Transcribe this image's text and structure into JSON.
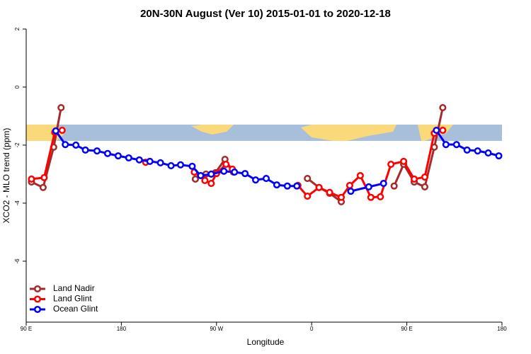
{
  "chart_data": {
    "type": "line",
    "title": "20N-30N August (Ver 10)   2015-01-01 to 2020-12-18",
    "xlabel": "Longitude",
    "ylabel": "XCO2 - MLO trend (ppm)",
    "xlim": [
      90,
      540
    ],
    "xticks": [
      {
        "value": 90,
        "label": "90 E"
      },
      180,
      {
        "value": 270,
        "label": "90 W"
      },
      {
        "value": 360,
        "label": "0"
      },
      {
        "value": 450,
        "label": "90 E"
      },
      {
        "value": 540,
        "label": "180"
      }
    ],
    "ylim": [
      -8.1,
      2
    ],
    "yticks": [
      2,
      0,
      -2,
      -4,
      -6
    ],
    "legend": "bottom-left",
    "series": [
      {
        "name": "Land Nadir",
        "color": "#a52a2a",
        "x": [
          95,
          106,
          116,
          123,
          null,
          250,
          260,
          269,
          278,
          286,
          null,
          356,
          367,
          377,
          388,
          null,
          438,
          447,
          457,
          467,
          476,
          484
        ],
        "values": [
          -3.27,
          -3.46,
          -2.07,
          -0.71,
          null,
          -3.17,
          -3.0,
          -2.95,
          -2.49,
          -2.93,
          null,
          -3.15,
          -3.46,
          -3.66,
          -3.95,
          null,
          -3.41,
          -2.66,
          -3.27,
          -3.44,
          -2.07,
          -0.71
        ]
      },
      {
        "name": "Land Glint",
        "color": "#ff0000",
        "x": [
          95,
          107,
          117,
          124,
          null,
          203,
          null,
          249,
          259,
          265,
          270,
          279,
          285,
          null,
          347,
          356,
          367,
          377,
          388,
          396,
          406,
          416,
          425,
          435,
          447,
          457,
          467,
          476,
          484
        ],
        "values": [
          -3.17,
          -3.12,
          -1.56,
          -1.49,
          null,
          -2.59,
          null,
          -2.93,
          -3.22,
          -3.32,
          -2.98,
          -2.66,
          -2.83,
          null,
          -3.39,
          -3.76,
          -3.46,
          -3.63,
          -3.8,
          -3.39,
          -3.05,
          -3.8,
          -3.78,
          -2.66,
          -2.56,
          -3.17,
          -3.1,
          -1.59,
          -1.49
        ]
      },
      {
        "name": "Ocean Glint",
        "color": "#0000ff",
        "x": [
          118,
          127,
          137,
          146,
          157,
          167,
          177,
          187,
          197,
          207,
          217,
          227,
          236,
          247,
          255,
          265,
          277,
          287,
          297,
          307,
          317,
          327,
          337,
          346,
          null,
          397,
          414,
          428,
          null,
          478,
          487,
          497,
          507,
          517,
          527,
          537
        ],
        "values": [
          -1.51,
          -1.98,
          -2.0,
          -2.17,
          -2.2,
          -2.29,
          -2.37,
          -2.44,
          -2.51,
          -2.56,
          -2.61,
          -2.71,
          -2.68,
          -2.73,
          -3.05,
          -3.0,
          -2.9,
          -2.93,
          -2.98,
          -3.2,
          -3.15,
          -3.37,
          -3.41,
          -3.41,
          null,
          -3.59,
          -3.44,
          -3.32,
          null,
          -1.49,
          -1.98,
          -1.98,
          -2.17,
          -2.2,
          -2.27,
          -2.37
        ]
      }
    ]
  }
}
